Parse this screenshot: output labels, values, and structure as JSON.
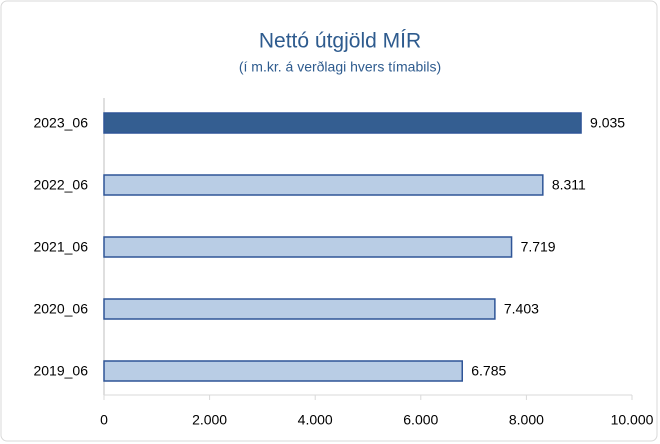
{
  "chart_data": {
    "type": "barh",
    "title": "Nettó útgjöld MÍR",
    "subtitle": "(í m.kr. á verðlagi hvers tímabils)",
    "categories": [
      "2023_06",
      "2022_06",
      "2021_06",
      "2020_06",
      "2019_06"
    ],
    "values": [
      9035,
      8311,
      7719,
      7403,
      6785
    ],
    "value_labels": [
      "9.035",
      "8.311",
      "7.719",
      "7.403",
      "6.785"
    ],
    "colors": [
      "#345e91",
      "#b9cde5",
      "#b9cde5",
      "#b9cde5",
      "#b9cde5"
    ],
    "edge_color": "#2f5597",
    "xlim": [
      0,
      10000
    ],
    "xticks": [
      0,
      {
        "value": 2000,
        "label": "2.000"
      },
      {
        "value": 4000,
        "label": "4.000"
      },
      {
        "value": 6000,
        "label": "6.000"
      },
      {
        "value": 8000,
        "label": "8.000"
      },
      {
        "value": 10000,
        "label": "10.000"
      }
    ]
  }
}
